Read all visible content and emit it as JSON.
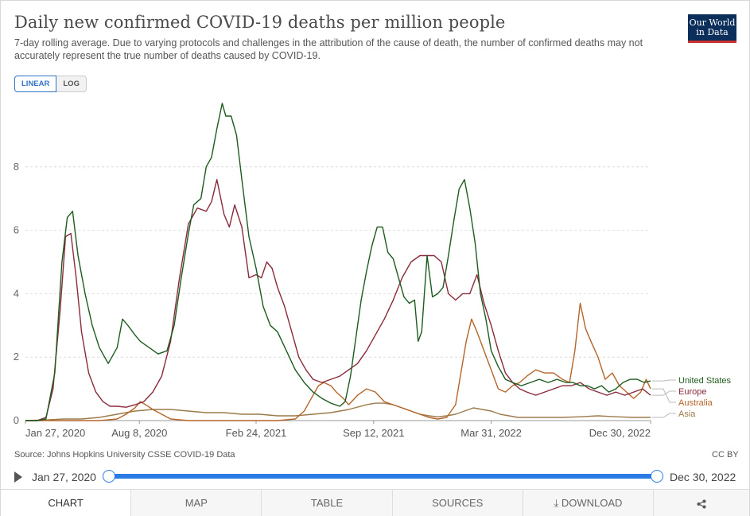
{
  "header": {
    "title": "Daily new confirmed COVID-19 deaths per million people",
    "subtitle": "7-day rolling average. Due to varying protocols and challenges in the attribution of the cause of death, the number of confirmed deaths may not accurately represent the true number of deaths caused by COVID-19.",
    "logo_line1": "Our World",
    "logo_line2": "in Data"
  },
  "scale_toggle": {
    "linear": "LINEAR",
    "log": "LOG"
  },
  "footer": {
    "source": "Source: Johns Hopkins University CSSE COVID-19 Data",
    "license": "CC BY"
  },
  "timeline": {
    "start": "Jan 27, 2020",
    "end": "Dec 30, 2022"
  },
  "tabs": {
    "chart": "CHART",
    "map": "MAP",
    "table": "TABLE",
    "sources": "SOURCES",
    "download": "DOWNLOAD",
    "download_icon": "⤓"
  },
  "colors": {
    "united_states": "#1e5b1e",
    "europe": "#8a2a3a",
    "australia": "#b5652a",
    "asia": "#9c7a4a",
    "grid": "#dddddd",
    "accent": "#2c7be5"
  },
  "icons": {
    "play": "play-icon",
    "share": "share-icon",
    "download": "download-icon"
  },
  "chart_data": {
    "type": "line",
    "title": "Daily new confirmed COVID-19 deaths per million people",
    "xlabel": "",
    "ylabel": "",
    "x_unit": "month index from Jan 2020 (0 = Jan 1, 2020)",
    "xlim": [
      0.85,
      35.95
    ],
    "ylim": [
      0,
      10
    ],
    "y_ticks": [
      0,
      2,
      4,
      6,
      8
    ],
    "x_tick_labels": [
      {
        "x": 0.85,
        "label": "Jan 27, 2020"
      },
      {
        "x": 7.25,
        "label": "Aug 8, 2020"
      },
      {
        "x": 13.8,
        "label": "Feb 24, 2021"
      },
      {
        "x": 20.4,
        "label": "Sep 12, 2021"
      },
      {
        "x": 27.0,
        "label": "Mar 31, 2022"
      },
      {
        "x": 35.95,
        "label": "Dec 30, 2022"
      }
    ],
    "series": [
      {
        "name": "United States",
        "x": [
          0.85,
          1.5,
          2.0,
          2.5,
          2.9,
          3.2,
          3.5,
          3.8,
          4.2,
          4.6,
          5.0,
          5.5,
          6.0,
          6.3,
          6.6,
          7.0,
          7.3,
          7.8,
          8.3,
          8.8,
          9.2,
          9.6,
          10.0,
          10.3,
          10.7,
          11.0,
          11.3,
          11.6,
          11.9,
          12.1,
          12.4,
          12.7,
          13.0,
          13.4,
          13.8,
          14.2,
          14.6,
          15.0,
          15.5,
          16.0,
          16.5,
          17.0,
          17.5,
          18.0,
          18.5,
          18.8,
          19.1,
          19.4,
          19.7,
          20.0,
          20.3,
          20.6,
          20.9,
          21.2,
          21.5,
          21.8,
          22.1,
          22.4,
          22.7,
          22.9,
          23.1,
          23.4,
          23.7,
          24.0,
          24.3,
          24.6,
          24.9,
          25.2,
          25.5,
          25.8,
          26.1,
          26.4,
          26.7,
          27.0,
          27.4,
          27.8,
          28.2,
          28.7,
          29.2,
          29.7,
          30.2,
          30.7,
          31.2,
          31.6,
          32.0,
          32.4,
          32.8,
          33.2,
          33.6,
          34.0,
          34.4,
          34.8,
          35.2,
          35.6,
          35.95
        ],
        "values": [
          0.0,
          0.0,
          0.05,
          1.5,
          5.0,
          6.4,
          6.6,
          5.2,
          4.0,
          3.0,
          2.3,
          1.8,
          2.3,
          3.2,
          3.0,
          2.7,
          2.5,
          2.3,
          2.1,
          2.2,
          3.0,
          4.5,
          5.9,
          6.8,
          7.0,
          8.0,
          8.3,
          9.2,
          10.0,
          9.6,
          9.6,
          9.0,
          7.6,
          5.8,
          4.8,
          3.6,
          3.0,
          2.8,
          2.2,
          1.6,
          1.2,
          0.9,
          0.7,
          0.55,
          0.45,
          0.6,
          1.4,
          2.6,
          3.8,
          4.7,
          5.5,
          6.1,
          6.1,
          5.3,
          5.1,
          4.5,
          3.9,
          3.7,
          3.8,
          2.5,
          2.8,
          5.2,
          3.9,
          4.0,
          4.2,
          5.2,
          6.3,
          7.3,
          7.6,
          6.7,
          5.6,
          4.0,
          3.2,
          2.2,
          1.7,
          1.3,
          1.2,
          1.1,
          1.2,
          1.3,
          1.2,
          1.3,
          1.2,
          1.2,
          1.1,
          1.1,
          1.0,
          1.1,
          0.9,
          1.0,
          1.2,
          1.3,
          1.3,
          1.2,
          1.25
        ]
      },
      {
        "name": "Europe",
        "x": [
          0.85,
          1.5,
          2.0,
          2.4,
          2.8,
          3.1,
          3.4,
          3.7,
          4.0,
          4.4,
          4.8,
          5.2,
          5.6,
          6.0,
          6.5,
          7.0,
          7.5,
          8.0,
          8.5,
          9.0,
          9.5,
          10.0,
          10.5,
          11.0,
          11.3,
          11.6,
          12.0,
          12.3,
          12.6,
          13.0,
          13.4,
          13.8,
          14.1,
          14.4,
          14.7,
          15.0,
          15.4,
          15.8,
          16.2,
          16.6,
          17.0,
          17.5,
          18.0,
          18.5,
          19.0,
          19.5,
          20.0,
          20.5,
          21.0,
          21.5,
          22.0,
          22.5,
          23.0,
          23.4,
          23.8,
          24.2,
          24.6,
          25.0,
          25.4,
          25.8,
          26.2,
          26.6,
          27.0,
          27.4,
          27.8,
          28.2,
          28.6,
          29.0,
          29.5,
          30.0,
          30.5,
          31.0,
          31.5,
          32.0,
          32.5,
          33.0,
          33.5,
          34.0,
          34.5,
          35.0,
          35.5,
          35.95
        ],
        "values": [
          0.0,
          0.0,
          0.1,
          1.0,
          3.5,
          5.8,
          5.9,
          4.5,
          2.8,
          1.5,
          0.9,
          0.6,
          0.45,
          0.45,
          0.42,
          0.5,
          0.6,
          0.9,
          1.4,
          2.5,
          4.5,
          6.2,
          6.7,
          6.6,
          6.9,
          7.6,
          6.5,
          6.1,
          6.8,
          6.1,
          4.5,
          4.6,
          4.5,
          5.0,
          4.8,
          4.2,
          3.6,
          2.8,
          2.0,
          1.6,
          1.3,
          1.2,
          1.3,
          1.4,
          1.6,
          1.8,
          2.2,
          2.7,
          3.2,
          3.8,
          4.5,
          5.0,
          5.2,
          5.2,
          5.2,
          5.0,
          4.0,
          3.8,
          4.0,
          4.0,
          4.6,
          3.7,
          3.0,
          2.2,
          1.5,
          1.2,
          1.0,
          0.9,
          0.8,
          0.9,
          1.0,
          1.1,
          1.1,
          1.2,
          1.0,
          0.9,
          0.8,
          0.9,
          0.8,
          0.9,
          1.0,
          0.8
        ]
      },
      {
        "name": "Australia",
        "x": [
          0.85,
          2.0,
          3.0,
          4.0,
          5.0,
          6.0,
          6.5,
          7.0,
          7.3,
          7.6,
          8.0,
          8.5,
          9.0,
          10.0,
          11.0,
          12.0,
          13.0,
          14.0,
          15.0,
          16.0,
          16.5,
          17.0,
          17.3,
          17.6,
          18.0,
          18.3,
          18.7,
          19.0,
          19.5,
          20.0,
          20.5,
          21.0,
          21.5,
          22.0,
          22.5,
          23.0,
          23.5,
          24.0,
          24.5,
          25.0,
          25.3,
          25.6,
          25.9,
          26.2,
          26.6,
          27.0,
          27.4,
          27.8,
          28.2,
          28.6,
          29.0,
          29.5,
          30.0,
          30.5,
          31.0,
          31.4,
          31.7,
          32.0,
          32.3,
          32.6,
          33.0,
          33.4,
          33.8,
          34.2,
          34.6,
          35.0,
          35.4,
          35.7,
          35.95
        ],
        "values": [
          0.0,
          0.0,
          0.0,
          0.0,
          0.0,
          0.05,
          0.2,
          0.4,
          0.6,
          0.5,
          0.35,
          0.2,
          0.05,
          0.0,
          0.0,
          0.0,
          0.0,
          0.0,
          0.0,
          0.05,
          0.3,
          0.8,
          1.1,
          1.2,
          1.1,
          0.9,
          0.7,
          0.5,
          0.8,
          1.0,
          0.9,
          0.6,
          0.5,
          0.4,
          0.3,
          0.2,
          0.1,
          0.05,
          0.1,
          0.5,
          1.5,
          2.5,
          3.2,
          2.8,
          2.2,
          1.6,
          1.0,
          0.9,
          1.1,
          1.2,
          1.4,
          1.6,
          1.5,
          1.5,
          1.3,
          1.2,
          2.2,
          3.7,
          2.9,
          2.5,
          2.0,
          1.3,
          1.5,
          1.1,
          0.9,
          0.7,
          0.9,
          1.3,
          1.0
        ]
      },
      {
        "name": "Asia",
        "x": [
          0.85,
          2.0,
          3.0,
          4.0,
          5.0,
          6.0,
          7.0,
          8.0,
          9.0,
          10.0,
          11.0,
          12.0,
          13.0,
          14.0,
          15.0,
          16.0,
          17.0,
          18.0,
          19.0,
          20.0,
          20.5,
          21.0,
          21.5,
          22.0,
          22.5,
          23.0,
          23.5,
          24.0,
          24.5,
          25.0,
          25.5,
          26.0,
          26.5,
          27.0,
          27.5,
          28.0,
          28.5,
          29.0,
          30.0,
          31.0,
          32.0,
          33.0,
          34.0,
          35.0,
          35.95
        ],
        "values": [
          0.0,
          0.02,
          0.05,
          0.05,
          0.1,
          0.2,
          0.3,
          0.35,
          0.35,
          0.3,
          0.25,
          0.25,
          0.2,
          0.2,
          0.15,
          0.15,
          0.2,
          0.25,
          0.35,
          0.5,
          0.55,
          0.55,
          0.5,
          0.4,
          0.3,
          0.2,
          0.15,
          0.12,
          0.15,
          0.2,
          0.3,
          0.4,
          0.35,
          0.3,
          0.2,
          0.15,
          0.1,
          0.1,
          0.1,
          0.1,
          0.12,
          0.15,
          0.12,
          0.1,
          0.1
        ]
      }
    ]
  }
}
